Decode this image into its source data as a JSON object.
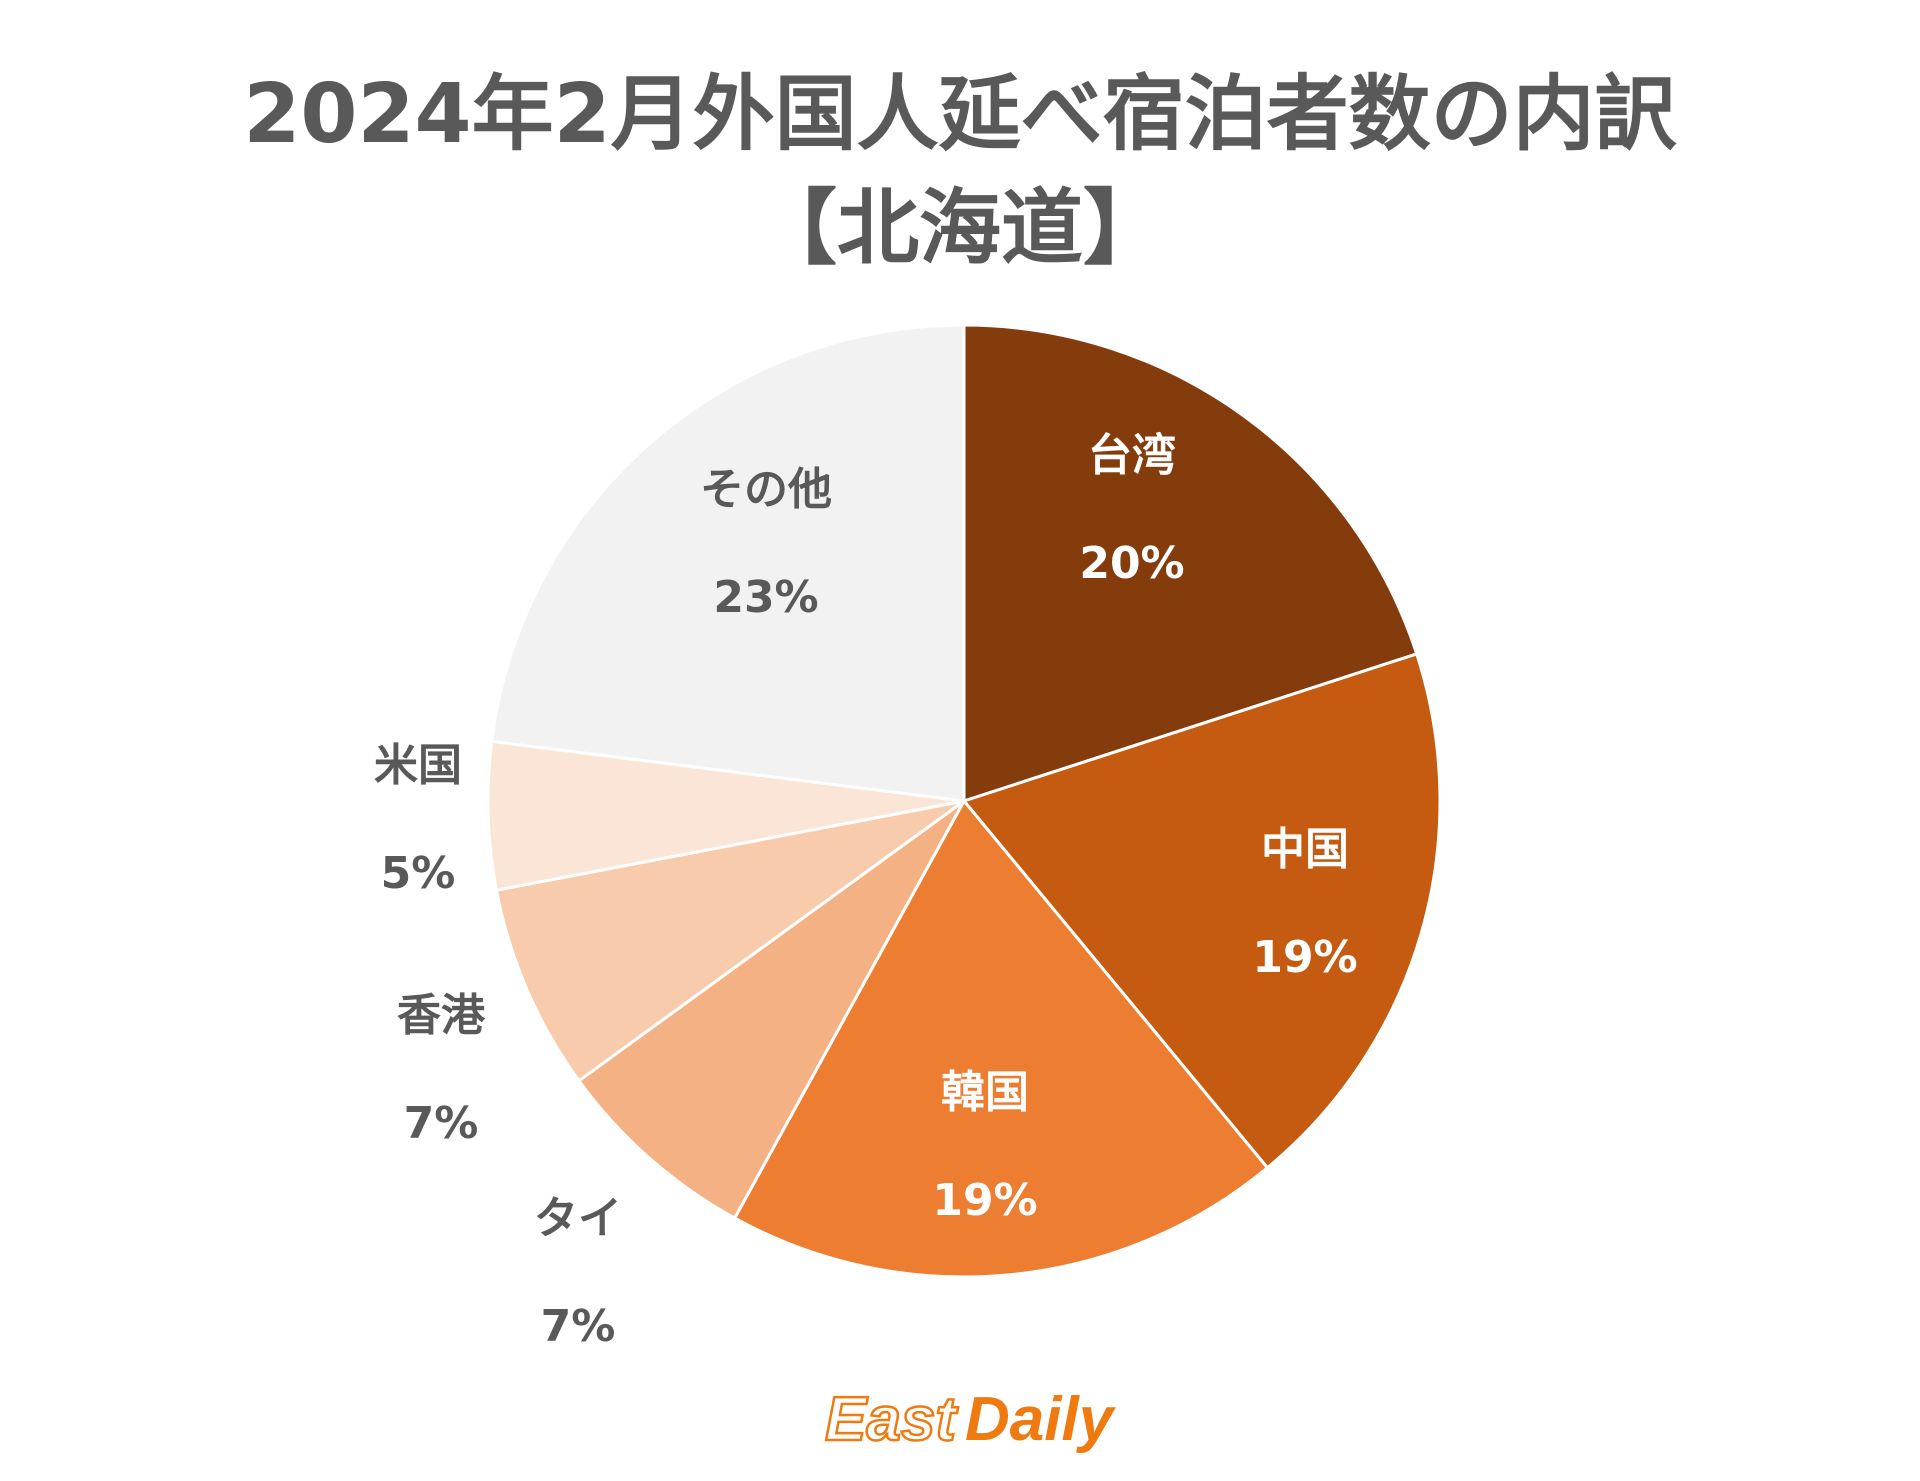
{
  "chart_data": {
    "type": "pie",
    "title": [
      "2024年2月外国人延べ宿泊者数の内訳",
      "【北海道】"
    ],
    "start": "top",
    "direction": "clockwise",
    "slices": [
      {
        "label": "台湾",
        "value": 20,
        "value_label": "20%",
        "color": "#843C0C",
        "text_color": "#FFFFFF"
      },
      {
        "label": "中国",
        "value": 19,
        "value_label": "19%",
        "color": "#C55A11",
        "text_color": "#FFFFFF"
      },
      {
        "label": "韓国",
        "value": 19,
        "value_label": "19%",
        "color": "#ED7D31",
        "text_color": "#FFFFFF"
      },
      {
        "label": "タイ",
        "value": 7,
        "value_label": "7%",
        "color": "#F4B183",
        "text_color": "#595959"
      },
      {
        "label": "香港",
        "value": 7,
        "value_label": "7%",
        "color": "#F8CBAD",
        "text_color": "#595959"
      },
      {
        "label": "米国",
        "value": 5,
        "value_label": "5%",
        "color": "#FBE5D6",
        "text_color": "#595959"
      },
      {
        "label": "その他",
        "value": 23,
        "value_label": "23%",
        "color": "#F2F2F2",
        "text_color": "#595959"
      }
    ]
  },
  "logo": {
    "text": "East Daily",
    "color": "#EE7A10"
  }
}
